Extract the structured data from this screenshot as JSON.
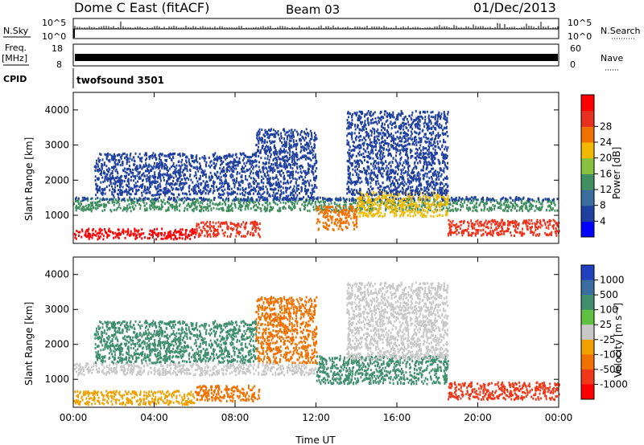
{
  "header": {
    "station": "Dome C East (fitACF)",
    "beam": "Beam 03",
    "date": "01/Dec/2013"
  },
  "top_panels": {
    "nsky_label": "N.Sky",
    "nsky_ticks": [
      "10^5",
      "10^0"
    ],
    "nsearch_label": "N.Search",
    "freq_label_line1": "Freq.",
    "freq_label_line2": "[MHz]",
    "freq_ticks": [
      "18",
      "8"
    ],
    "nave_label": "Nave",
    "nave_ticks": [
      "60",
      "0"
    ],
    "cpid_label": "CPID",
    "cpid_value": "twofsound 3501"
  },
  "chart_data": [
    {
      "type": "heatmap",
      "name": "power",
      "xlabel": "",
      "ylabel": "Slant Range [km]",
      "xlim": [
        0,
        24
      ],
      "ylim": [
        200,
        4500
      ],
      "x_ticks": [
        0,
        4,
        8,
        12,
        16,
        20,
        24
      ],
      "y_ticks": [
        1000,
        2000,
        3000,
        4000
      ],
      "colorbar": {
        "label": "Power [dB]",
        "ticks": [
          "4",
          "8",
          "12",
          "16",
          "20",
          "24",
          "28"
        ],
        "colors": [
          "#0000ff",
          "#2040a0",
          "#3a6e9c",
          "#3f8f5f",
          "#88c040",
          "#f0b800",
          "#f07000",
          "#e83020",
          "#ff0000"
        ]
      },
      "scatter_bands": [
        {
          "t0": 0.0,
          "t1": 6.0,
          "r0": 350,
          "r1": 650,
          "color": "#ff0000"
        },
        {
          "t0": 6.0,
          "t1": 9.2,
          "r0": 420,
          "r1": 850,
          "color": "#f03018"
        },
        {
          "t0": 0.0,
          "t1": 24.0,
          "r0": 1150,
          "r1": 1500,
          "color": "#3f8f5f"
        },
        {
          "t0": 0.0,
          "t1": 24.0,
          "r0": 1450,
          "r1": 1550,
          "color": "#2040a0"
        },
        {
          "t0": 12.0,
          "t1": 14.0,
          "r0": 600,
          "r1": 1300,
          "color": "#f07000"
        },
        {
          "t0": 14.0,
          "t1": 18.5,
          "r0": 1000,
          "r1": 1700,
          "color": "#f0b800"
        },
        {
          "t0": 18.5,
          "t1": 24.0,
          "r0": 450,
          "r1": 900,
          "color": "#f03018"
        },
        {
          "t0": 9.0,
          "t1": 12.0,
          "r0": 1500,
          "r1": 3500,
          "color": "#2040a0"
        },
        {
          "t0": 13.5,
          "t1": 18.5,
          "r0": 1600,
          "r1": 4000,
          "color": "#2040a0"
        },
        {
          "t0": 1.0,
          "t1": 9.0,
          "r0": 1600,
          "r1": 2800,
          "color": "#2040a0"
        }
      ]
    },
    {
      "type": "heatmap",
      "name": "velocity",
      "xlabel": "Time UT",
      "ylabel": "Slant Range [km]",
      "xlim": [
        0,
        24
      ],
      "ylim": [
        200,
        4500
      ],
      "x_ticks": [
        0,
        4,
        8,
        12,
        16,
        20,
        24
      ],
      "x_tick_labels": [
        "00:00",
        "04:00",
        "08:00",
        "12:00",
        "16:00",
        "20:00",
        "00:00"
      ],
      "y_ticks": [
        1000,
        2000,
        3000,
        4000
      ],
      "colorbar": {
        "label": "Velocity [m s⁻¹]",
        "ticks": [
          "1000",
          "500",
          "100",
          "25",
          "-25",
          "-100",
          "-500",
          "-1000"
        ],
        "colors": [
          "#2040c0",
          "#3a6ea0",
          "#3f8f6f",
          "#60c040",
          "#c8c8c8",
          "#f0a000",
          "#f07000",
          "#f03818",
          "#ff0000"
        ]
      },
      "scatter_bands": [
        {
          "t0": 0.0,
          "t1": 6.0,
          "r0": 300,
          "r1": 700,
          "color": "#f0a000"
        },
        {
          "t0": 6.0,
          "t1": 9.2,
          "r0": 400,
          "r1": 850,
          "color": "#f07000"
        },
        {
          "t0": 0.0,
          "t1": 12.0,
          "r0": 1150,
          "r1": 1500,
          "color": "#c8c8c8"
        },
        {
          "t0": 12.0,
          "t1": 18.5,
          "r0": 900,
          "r1": 1700,
          "color": "#3f8f6f"
        },
        {
          "t0": 18.5,
          "t1": 24.0,
          "r0": 450,
          "r1": 950,
          "color": "#f03818"
        },
        {
          "t0": 9.0,
          "t1": 12.0,
          "r0": 1500,
          "r1": 3400,
          "color": "#f07000"
        },
        {
          "t0": 13.5,
          "t1": 18.5,
          "r0": 1600,
          "r1": 3800,
          "color": "#c8c8c8"
        },
        {
          "t0": 1.0,
          "t1": 9.0,
          "r0": 1500,
          "r1": 2700,
          "color": "#3f8f6f"
        }
      ]
    }
  ]
}
